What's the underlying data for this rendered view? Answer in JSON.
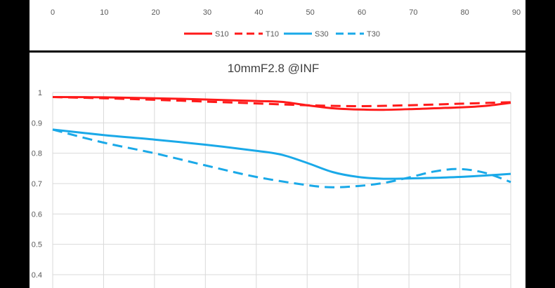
{
  "colors": {
    "s_series": "#ff1a1a",
    "t_series": "#1aa9e8",
    "grid": "#d9d9d9",
    "frame": "#000000"
  },
  "chart_data": [
    {
      "type": "line",
      "x_ticks": [
        "0",
        "10",
        "20",
        "30",
        "40",
        "50",
        "60",
        "70",
        "80",
        "90"
      ],
      "xlim": [
        0,
        90
      ],
      "legend_position": "bottom",
      "series": [
        {
          "name": "S10",
          "color": "#ff1a1a",
          "style": "solid"
        },
        {
          "name": "T10",
          "color": "#ff1a1a",
          "style": "dashed"
        },
        {
          "name": "S30",
          "color": "#1aa9e8",
          "style": "solid"
        },
        {
          "name": "T30",
          "color": "#1aa9e8",
          "style": "dashed"
        }
      ]
    },
    {
      "type": "line",
      "title": "10mmF2.8 @INF",
      "xlabel": "",
      "ylabel": "",
      "xlim": [
        0,
        90
      ],
      "ylim": [
        0.4,
        1.0
      ],
      "y_ticks": [
        "0.4",
        "0.5",
        "0.6",
        "0.7",
        "0.8",
        "0.9",
        "1"
      ],
      "grid": true,
      "series": [
        {
          "name": "S10",
          "color": "#ff1a1a",
          "style": "solid",
          "x": [
            0,
            10,
            20,
            30,
            40,
            45,
            50,
            55,
            60,
            65,
            70,
            75,
            80,
            85,
            90
          ],
          "y": [
            0.985,
            0.984,
            0.981,
            0.977,
            0.972,
            0.969,
            0.958,
            0.948,
            0.944,
            0.943,
            0.945,
            0.948,
            0.951,
            0.956,
            0.966
          ]
        },
        {
          "name": "T10",
          "color": "#ff1a1a",
          "style": "dashed",
          "x": [
            0,
            10,
            20,
            30,
            40,
            50,
            60,
            70,
            80,
            90
          ],
          "y": [
            0.985,
            0.981,
            0.976,
            0.97,
            0.964,
            0.958,
            0.955,
            0.958,
            0.963,
            0.968
          ]
        },
        {
          "name": "S30",
          "color": "#1aa9e8",
          "style": "solid",
          "x": [
            0,
            10,
            20,
            30,
            40,
            45,
            50,
            55,
            60,
            65,
            70,
            80,
            90
          ],
          "y": [
            0.878,
            0.86,
            0.845,
            0.828,
            0.808,
            0.795,
            0.768,
            0.738,
            0.722,
            0.716,
            0.717,
            0.722,
            0.732
          ]
        },
        {
          "name": "T30",
          "color": "#1aa9e8",
          "style": "dashed",
          "x": [
            0,
            10,
            20,
            30,
            40,
            50,
            55,
            60,
            65,
            70,
            75,
            80,
            85,
            90
          ],
          "y": [
            0.878,
            0.835,
            0.8,
            0.76,
            0.722,
            0.695,
            0.688,
            0.692,
            0.702,
            0.72,
            0.74,
            0.748,
            0.735,
            0.705
          ]
        }
      ]
    }
  ]
}
